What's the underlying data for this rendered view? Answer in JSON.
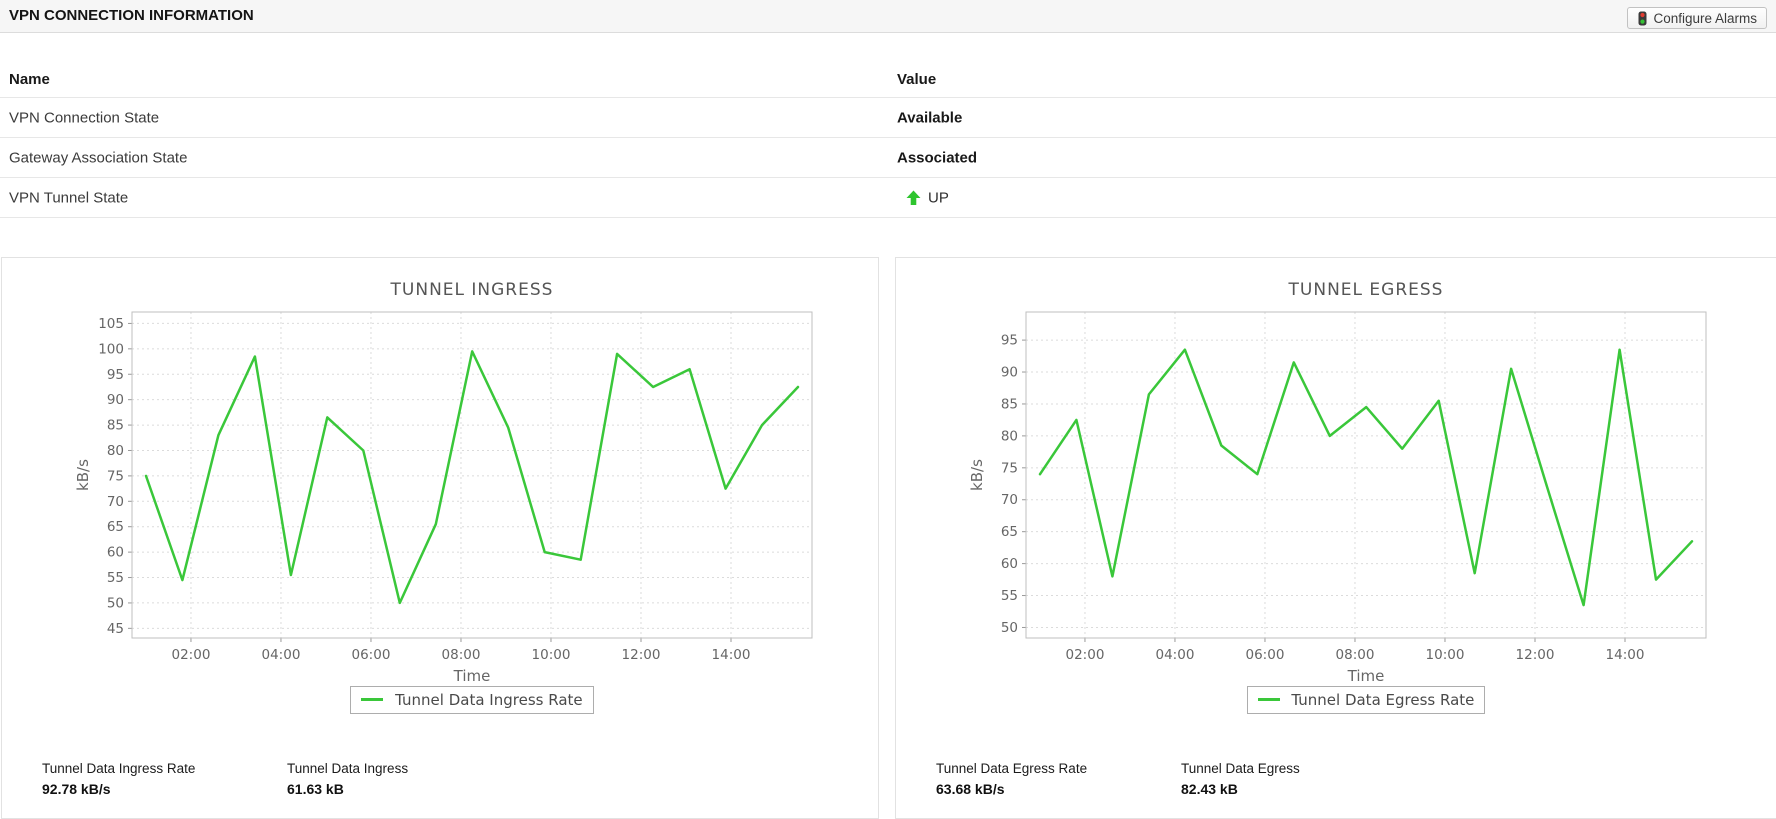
{
  "topbar": {
    "title": "VPN CONNECTION INFORMATION",
    "configure_alarms": "Configure Alarms"
  },
  "info_table": {
    "name_header": "Name",
    "value_header": "Value",
    "rows": [
      {
        "name": "VPN Connection State",
        "value": "Available"
      },
      {
        "name": "Gateway Association State",
        "value": "Associated"
      },
      {
        "name": "VPN Tunnel State",
        "value": "UP"
      }
    ]
  },
  "colors": {
    "line_green": "#3ac73a",
    "arrow_green": "#2ec52e",
    "grid": "#dbdbdb",
    "plot_border": "#bfbfbf",
    "tick_text": "#666666"
  },
  "chart_data": [
    {
      "type": "line",
      "title": "TUNNEL INGRESS",
      "xlabel": "Time",
      "ylabel": "kB/s",
      "legend": "Tunnel Data Ingress Rate",
      "line_color": "#3ac73a",
      "x_hours": [
        1.0,
        1.81,
        2.61,
        3.42,
        4.22,
        5.03,
        5.83,
        6.64,
        7.44,
        8.25,
        9.05,
        9.86,
        10.66,
        11.47,
        12.27,
        13.08,
        13.88,
        14.69,
        15.49
      ],
      "values": [
        75,
        54.5,
        83,
        98.5,
        55.5,
        86.5,
        80,
        50,
        65.5,
        99.5,
        84.5,
        60,
        58.5,
        99,
        92.5,
        96,
        72.5,
        85,
        92.5
      ],
      "yticks": [
        45,
        50,
        55,
        60,
        65,
        70,
        75,
        80,
        85,
        90,
        95,
        100,
        105
      ],
      "xticks": [
        {
          "t": 2,
          "label": "02:00"
        },
        {
          "t": 4,
          "label": "04:00"
        },
        {
          "t": 6,
          "label": "06:00"
        },
        {
          "t": 8,
          "label": "08:00"
        },
        {
          "t": 10,
          "label": "10:00"
        },
        {
          "t": 12,
          "label": "12:00"
        },
        {
          "t": 14,
          "label": "14:00"
        }
      ],
      "xlim": [
        0.69,
        15.8
      ],
      "ylim": [
        43.1,
        107.25
      ],
      "stats": [
        {
          "label": "Tunnel Data Ingress Rate",
          "value": "92.78 kB/s"
        },
        {
          "label": "Tunnel Data Ingress",
          "value": "61.63 kB"
        }
      ]
    },
    {
      "type": "line",
      "title": "TUNNEL EGRESS",
      "xlabel": "Time",
      "ylabel": "kB/s",
      "legend": "Tunnel Data Egress Rate",
      "line_color": "#3ac73a",
      "x_hours": [
        1.0,
        1.81,
        2.61,
        3.42,
        4.22,
        5.03,
        5.83,
        6.64,
        7.44,
        8.25,
        9.05,
        9.86,
        10.66,
        11.47,
        12.27,
        13.08,
        13.88,
        14.69,
        15.49
      ],
      "values": [
        74,
        82.5,
        58,
        86.5,
        93.5,
        78.5,
        74,
        91.5,
        80,
        84.5,
        78,
        85.5,
        58.5,
        90.5,
        72,
        53.5,
        93.5,
        57.5,
        63.5
      ],
      "yticks": [
        50,
        55,
        60,
        65,
        70,
        75,
        80,
        85,
        90,
        95
      ],
      "xticks": [
        {
          "t": 2,
          "label": "02:00"
        },
        {
          "t": 4,
          "label": "04:00"
        },
        {
          "t": 6,
          "label": "06:00"
        },
        {
          "t": 8,
          "label": "08:00"
        },
        {
          "t": 10,
          "label": "10:00"
        },
        {
          "t": 12,
          "label": "12:00"
        },
        {
          "t": 14,
          "label": "14:00"
        }
      ],
      "xlim": [
        0.69,
        15.8
      ],
      "ylim": [
        48.35,
        99.4
      ],
      "stats": [
        {
          "label": "Tunnel Data Egress Rate",
          "value": "63.68 kB/s"
        },
        {
          "label": "Tunnel Data Egress",
          "value": "82.43 kB"
        }
      ]
    }
  ]
}
